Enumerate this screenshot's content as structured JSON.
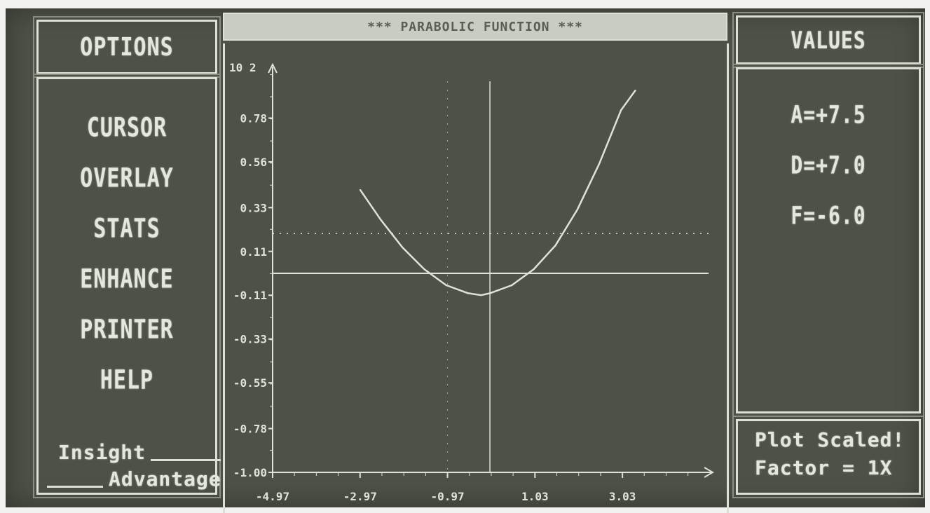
{
  "options": {
    "header": "OPTIONS",
    "items": [
      {
        "label": "CURSOR"
      },
      {
        "label": "OVERLAY"
      },
      {
        "label": "STATS"
      },
      {
        "label": "ENHANCE"
      },
      {
        "label": "PRINTER"
      },
      {
        "label": "HELP"
      }
    ]
  },
  "brand": {
    "line1": "Insight",
    "line2": "Advantage"
  },
  "title": "*** PARABOLIC FUNCTION ***",
  "values": {
    "header": "VALUES",
    "items": [
      "A=+7.5",
      "D=+7.0",
      "F=-6.0"
    ]
  },
  "status": {
    "line1": "Plot Scaled!",
    "line2": "Factor = 1X"
  },
  "colors": {
    "screen_bg": "#4d5147",
    "phosphor": "#e4e7dd"
  },
  "chart_data": {
    "type": "line",
    "y_exponent_label": "10 2",
    "x_ticks": [
      "-4.97",
      "-2.97",
      "-0.97",
      "1.03",
      "3.03"
    ],
    "y_ticks": [
      "0.78",
      "0.56",
      "0.33",
      "0.11",
      "-0.11",
      "-0.33",
      "-0.55",
      "-0.78",
      "-1.00"
    ],
    "series": [
      {
        "x": [
          -2.97,
          -2.5,
          -2.0,
          -1.5,
          -1.0,
          -0.5,
          -0.2,
          0.0,
          0.5,
          1.0,
          1.5,
          2.0,
          2.5,
          3.0,
          3.33
        ],
        "y": [
          0.42,
          0.27,
          0.13,
          0.02,
          -0.06,
          -0.1,
          -0.11,
          -0.1,
          -0.06,
          0.02,
          0.14,
          0.32,
          0.55,
          0.82,
          0.92
        ]
      }
    ],
    "xlim": [
      -4.97,
      5.0
    ],
    "ylim": [
      -1.0,
      1.0
    ],
    "dotted_reference_y": 0.2
  }
}
